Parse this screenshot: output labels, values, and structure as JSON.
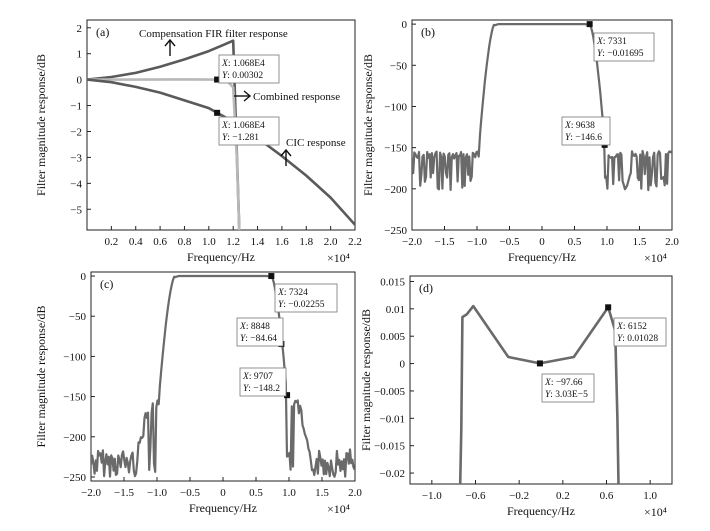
{
  "chart_data": [
    {
      "panel": "(a)",
      "type": "line",
      "xlabel": "Frequency/Hz",
      "xscale": "×10⁴",
      "ylabel": "Filter magnitude response/dB",
      "xlim": [
        0,
        2.2
      ],
      "ylim": [
        -5.8,
        2.3
      ],
      "xticks": [
        "0.2",
        "0.4",
        "0.6",
        "0.8",
        "1.0",
        "1.2",
        "1.4",
        "1.6",
        "1.8",
        "2.0",
        "2.2"
      ],
      "xtick_values": [
        0.2,
        0.4,
        0.6,
        0.8,
        1.0,
        1.2,
        1.4,
        1.6,
        1.8,
        2.0,
        2.2
      ],
      "yticks": [
        "2",
        "1",
        "0",
        "−1",
        "−2",
        "−3",
        "−4",
        "−5"
      ],
      "ytick_values": [
        2,
        1,
        0,
        -1,
        -2,
        -3,
        -4,
        -5
      ],
      "series": [
        {
          "name": "Compensation FIR filter response",
          "color": "#5a5a5a",
          "x": [
            0,
            0.2,
            0.4,
            0.6,
            0.8,
            1.0,
            1.1,
            1.2,
            1.25
          ],
          "y": [
            0,
            0.1,
            0.26,
            0.5,
            0.78,
            1.1,
            1.3,
            1.5,
            -5.8
          ]
        },
        {
          "name": "Combined response",
          "color": "#b8b8b8",
          "x": [
            0,
            0.4,
            0.8,
            1.068,
            1.15,
            1.2,
            1.23,
            1.25
          ],
          "y": [
            0,
            0,
            0.01,
            0.003,
            -0.05,
            -0.3,
            -3.0,
            -5.8
          ]
        },
        {
          "name": "CIC response",
          "color": "#5a5a5a",
          "x": [
            0,
            0.2,
            0.4,
            0.6,
            0.8,
            1.0,
            1.068,
            1.2,
            1.4,
            1.6,
            1.8,
            2.0,
            2.2
          ],
          "y": [
            0,
            -0.1,
            -0.28,
            -0.5,
            -0.8,
            -1.1,
            -1.281,
            -1.62,
            -2.25,
            -2.95,
            -3.7,
            -4.55,
            -5.6
          ]
        }
      ],
      "annotations": [
        {
          "label": "Compensation FIR filter response",
          "arrow": "up"
        },
        {
          "label": "Combined response",
          "arrow": "right"
        },
        {
          "label": "CIC response",
          "arrow": "up"
        }
      ],
      "datatips": [
        {
          "x_text": "1.068E4",
          "y_text": "0.00302",
          "x": 1.068,
          "y": 0.003
        },
        {
          "x_text": "1.068E4",
          "y_text": "−1.281",
          "x": 1.068,
          "y": -1.281
        }
      ]
    },
    {
      "panel": "(b)",
      "type": "line",
      "xlabel": "Frequency/Hz",
      "xscale": "×10⁴",
      "ylabel": "Filter magnitude response/dB",
      "xlim": [
        -2.0,
        2.0
      ],
      "ylim": [
        -250,
        5
      ],
      "xticks": [
        "−2.0",
        "−1.5",
        "−1.0",
        "−0.5",
        "0",
        "0.5",
        "1.0",
        "1.5",
        "2.0"
      ],
      "xtick_values": [
        -2.0,
        -1.5,
        -1.0,
        -0.5,
        0,
        0.5,
        1.0,
        1.5,
        2.0
      ],
      "yticks": [
        "0",
        "−50",
        "−100",
        "−150",
        "−200",
        "−250"
      ],
      "ytick_values": [
        0,
        -50,
        -100,
        -150,
        -200,
        -250
      ],
      "series": [
        {
          "name": "Overall response",
          "color": "#6a6a6a",
          "passband_edges": [
            -0.73,
            0.73
          ],
          "stop_edges": [
            -0.97,
            0.97
          ],
          "stopband_level": -150,
          "stopband_floor": -198
        }
      ],
      "datatips": [
        {
          "x_text": "7331",
          "y_text": "−0.01695",
          "x": 0.7331,
          "y": -0.017
        },
        {
          "x_text": "9638",
          "y_text": "−146.6",
          "x": 0.9638,
          "y": -146.6
        }
      ]
    },
    {
      "panel": "(c)",
      "type": "line",
      "xlabel": "Frequency/Hz",
      "xscale": "×10⁴",
      "ylabel": "Filter magnitude response/dB",
      "xlim": [
        -2.0,
        2.0
      ],
      "ylim": [
        -255,
        5
      ],
      "xticks": [
        "−2.0",
        "−1.5",
        "−1.0",
        "−0.5",
        "0",
        "0.5",
        "1.0",
        "1.5",
        "2.0"
      ],
      "xtick_values": [
        -2.0,
        -1.5,
        -1.0,
        -0.5,
        0,
        0.5,
        1.0,
        1.5,
        2.0
      ],
      "yticks": [
        "0",
        "−50",
        "−100",
        "−150",
        "−200",
        "−250"
      ],
      "ytick_values": [
        0,
        -50,
        -100,
        -150,
        -200,
        -250
      ],
      "series": [
        {
          "name": "Overall response",
          "color": "#6a6a6a",
          "passband_edges": [
            -0.73,
            0.73
          ],
          "stop_edges": [
            -0.97,
            0.97
          ],
          "stopband_level": -150,
          "stopband_floor": -250
        }
      ],
      "datatips": [
        {
          "x_text": "7324",
          "y_text": "−0.02255",
          "x": 0.7324,
          "y": -0.023
        },
        {
          "x_text": "8848",
          "y_text": "−84.64",
          "x": 0.8848,
          "y": -84.64
        },
        {
          "x_text": "9707",
          "y_text": "−148.2",
          "x": 0.9707,
          "y": -148.2
        }
      ]
    },
    {
      "panel": "(d)",
      "type": "line",
      "xlabel": "Frequency/Hz",
      "xscale": "×10⁴",
      "ylabel": "Filter magnitude response/dB",
      "xlim": [
        -1.2,
        1.2
      ],
      "ylim": [
        -0.022,
        0.016
      ],
      "xticks": [
        "−1.0",
        "−0.6",
        "−0.2",
        "0.2",
        "0.6",
        "1.0"
      ],
      "xtick_values": [
        -1.0,
        -0.6,
        -0.2,
        0.2,
        0.6,
        1.0
      ],
      "yticks": [
        "0.015",
        "0.01",
        "0.005",
        "0",
        "−0.005",
        "−0.01",
        "−0.015",
        "−0.02"
      ],
      "ytick_values": [
        0.015,
        0.01,
        0.005,
        0,
        -0.005,
        -0.01,
        -0.015,
        -0.02
      ],
      "series": [
        {
          "name": "Passband ripple",
          "color": "#6a6a6a",
          "x": [
            -0.74,
            -0.73,
            -0.72,
            -0.68,
            -0.62,
            -0.3,
            -0.0098,
            0.3,
            0.6152,
            0.68,
            0.7,
            0.71
          ],
          "y": [
            -0.022,
            -0.012,
            0.0085,
            0.009,
            0.0105,
            0.0012,
            3e-05,
            0.0012,
            0.01028,
            0.006,
            -0.01,
            -0.022
          ]
        }
      ],
      "datatips": [
        {
          "x_text": "−97.66",
          "y_text": "3.03E−5",
          "x": -0.0098,
          "y": 3e-05
        },
        {
          "x_text": "6152",
          "y_text": "0.01028",
          "x": 0.6152,
          "y": 0.01028
        }
      ]
    }
  ]
}
